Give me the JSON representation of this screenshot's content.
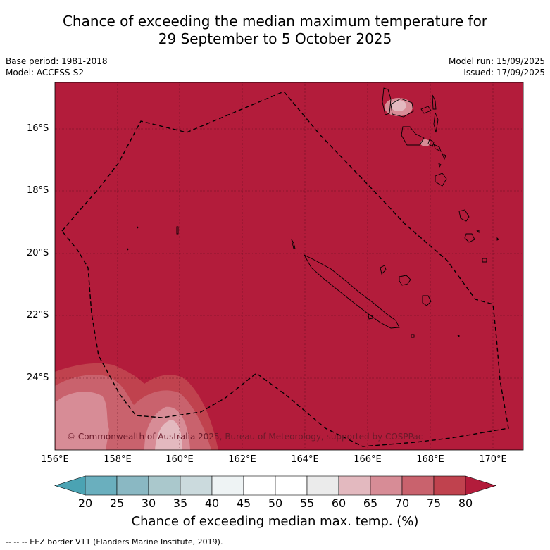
{
  "title_line1": "Chance of exceeding the median maximum temperature for",
  "title_line2": "29 September to 5 October 2025",
  "meta_left": [
    "Base period: 1981-2018",
    "Model: ACCESS-S2"
  ],
  "meta_right": [
    "Model run: 15/09/2025",
    "Issued: 17/09/2025"
  ],
  "lat_labels": [
    "16°S",
    "18°S",
    "20°S",
    "22°S",
    "24°S"
  ],
  "lon_labels": [
    "156°E",
    "158°E",
    "160°E",
    "162°E",
    "164°E",
    "166°E",
    "168°E",
    "170°E"
  ],
  "colorbar_labels": [
    "20",
    "25",
    "30",
    "35",
    "40",
    "45",
    "50",
    "55",
    "60",
    "65",
    "70",
    "75",
    "80"
  ],
  "colorbar_colors": [
    "#4ba3b3",
    "#6aafbe",
    "#8ab8c3",
    "#aac8cc",
    "#cbdadd",
    "#eef3f4",
    "#ffffff",
    "#ffffff",
    "#ebebeb",
    "#e3b9bf",
    "#d78c96",
    "#c9626d",
    "#c0424e",
    "#b31c3b"
  ],
  "colorbar_title": "Chance of exceeding median max. temp. (%)",
  "copyright": "© Commonwealth of Australia 2025, Bureau of Meteorology, supported by COSPPac",
  "footer": "-- -- -- EEZ border V11 (Flanders Marine Institute, 2019).",
  "map_base_color": "#b31c3b"
}
